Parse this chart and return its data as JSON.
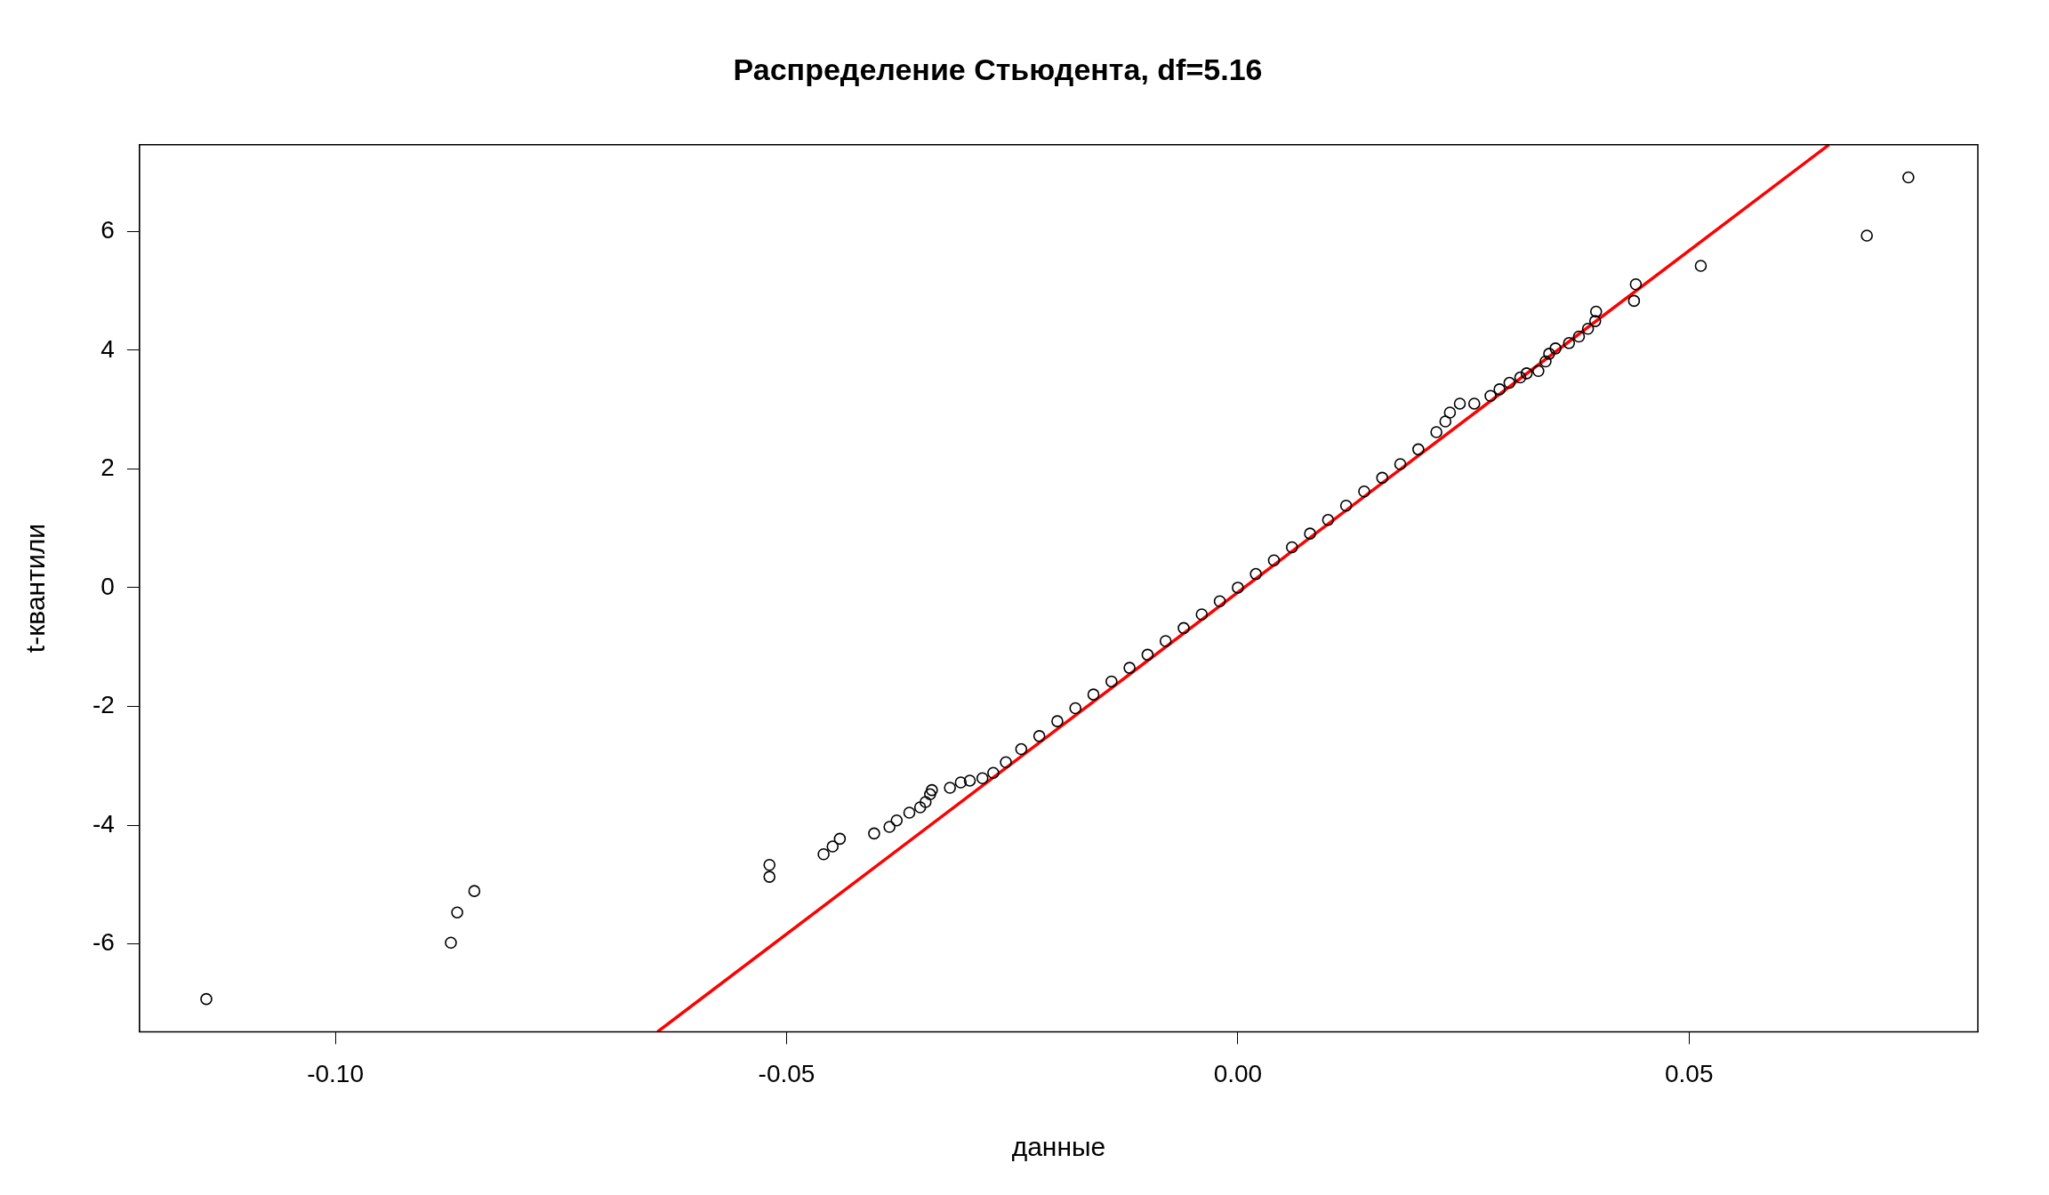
{
  "chart_data": {
    "type": "scatter",
    "title": "Распределение Стьюдента, df=5.16",
    "xlabel": "данные",
    "ylabel": "t-квантили",
    "xlim": [
      -0.1217,
      0.082
    ],
    "ylim": [
      -7.48,
      7.46
    ],
    "xticks": [
      {
        "value": -0.1,
        "label": "-0.10"
      },
      {
        "value": -0.05,
        "label": "-0.05"
      },
      {
        "value": 0,
        "label": "0.00"
      },
      {
        "value": 0.05,
        "label": "0.05"
      }
    ],
    "yticks": [
      -6,
      -4,
      -2,
      0,
      2,
      4,
      6
    ],
    "grid": false,
    "legend": false,
    "marker": "circle",
    "series": [
      {
        "color": "#000000",
        "x": [
          -0.1143,
          -0.0872,
          -0.0865,
          -0.0846,
          -0.0519,
          -0.0519,
          -0.0459,
          -0.0449,
          -0.0441,
          -0.0403,
          -0.0386,
          -0.0378,
          -0.0364,
          -0.0352,
          -0.0346,
          -0.0341,
          -0.0339,
          -0.0319,
          -0.0307,
          -0.0297,
          -0.0283,
          -0.0271,
          -0.0257,
          -0.024,
          -0.022,
          -0.02,
          -0.018,
          -0.016,
          -0.014,
          -0.012,
          -0.01,
          -0.008,
          -0.006,
          -0.004,
          -0.002,
          0,
          0.002,
          0.004,
          0.006,
          0.008,
          0.01,
          0.012,
          0.014,
          0.016,
          0.018,
          0.02,
          0.022,
          0.023,
          0.0235,
          0.0246,
          0.0262,
          0.028,
          0.029,
          0.0301,
          0.0313,
          0.032,
          0.0333,
          0.0341,
          0.0345,
          0.0352,
          0.0367,
          0.0378,
          0.0388,
          0.0396,
          0.0397,
          0.0439,
          0.0441,
          0.0513,
          0.0697,
          0.0743
        ],
        "values": [
          -6.93,
          -5.98,
          -5.47,
          -5.11,
          -4.67,
          -4.87,
          -4.49,
          -4.36,
          -4.23,
          -4.14,
          -4.03,
          -3.92,
          -3.79,
          -3.7,
          -3.61,
          -3.48,
          -3.41,
          -3.37,
          -3.28,
          -3.25,
          -3.21,
          -3.12,
          -2.94,
          -2.72,
          -2.5,
          -2.25,
          -2.03,
          -1.8,
          -1.58,
          -1.35,
          -1.13,
          -0.9,
          -0.68,
          -0.45,
          -0.23,
          0,
          0.23,
          0.46,
          0.68,
          0.91,
          1.14,
          1.38,
          1.62,
          1.85,
          2.08,
          2.33,
          2.62,
          2.8,
          2.95,
          3.1,
          3.1,
          3.23,
          3.34,
          3.45,
          3.54,
          3.61,
          3.65,
          3.81,
          3.94,
          4.03,
          4.12,
          4.23,
          4.36,
          4.49,
          4.65,
          4.83,
          5.11,
          5.42,
          5.93,
          6.91
        ]
      },
      {
        "type": "line",
        "color": "#ff0000",
        "marker": "none",
        "x": [
          -0.0643,
          0.0655
        ],
        "values": [
          -7.48,
          7.46
        ]
      }
    ]
  }
}
